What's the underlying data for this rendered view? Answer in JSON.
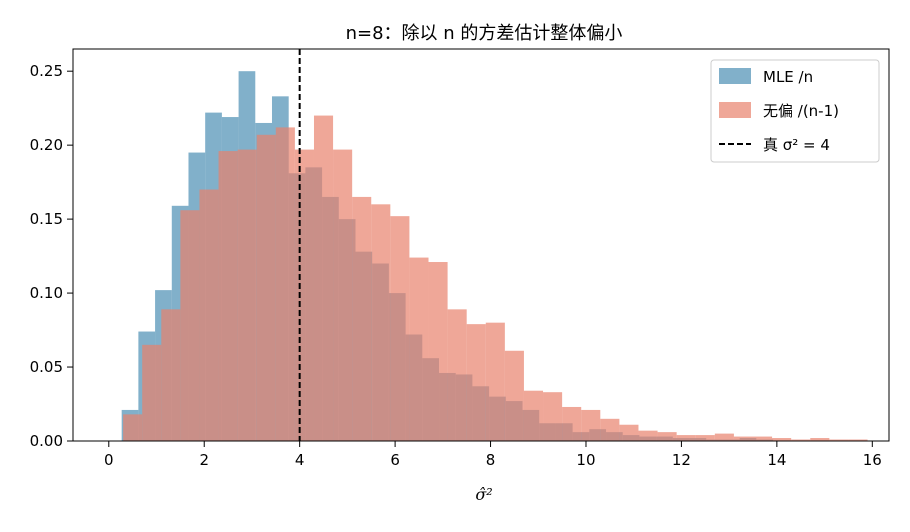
{
  "chart_data": {
    "type": "histogram",
    "title": "n=8：除以 n 的方差估计整体偏小",
    "xlabel": "σ̂²",
    "ylabel": "",
    "xlim": [
      -0.75,
      16.35
    ],
    "ylim": [
      0,
      0.265
    ],
    "xticks": [
      0,
      2,
      4,
      6,
      8,
      10,
      12,
      14,
      16
    ],
    "yticks": [
      0.0,
      0.05,
      0.1,
      0.15,
      0.2,
      0.25
    ],
    "ytick_labels": [
      "0.00",
      "0.05",
      "0.10",
      "0.15",
      "0.20",
      "0.25"
    ],
    "grid": false,
    "legend_position": "top-right",
    "series": [
      {
        "name": "MLE /n",
        "color": "#4c8fb4",
        "alpha": 0.7,
        "bin_width": 0.35,
        "bin_edges_start": 0.27,
        "values": [
          0.021,
          0.074,
          0.102,
          0.159,
          0.195,
          0.222,
          0.219,
          0.25,
          0.215,
          0.233,
          0.181,
          0.185,
          0.165,
          0.15,
          0.128,
          0.12,
          0.1,
          0.072,
          0.056,
          0.046,
          0.045,
          0.037,
          0.03,
          0.027,
          0.021,
          0.012,
          0.012,
          0.006,
          0.008,
          0.006,
          0.004,
          0.003,
          0.003,
          0.002,
          0.002,
          0.001,
          0.001,
          0.002,
          0.001
        ]
      },
      {
        "name": "无偏 /(n-1)",
        "color": "#e8826c",
        "alpha": 0.7,
        "bin_width": 0.4,
        "bin_edges_start": 0.3,
        "values": [
          0.018,
          0.065,
          0.089,
          0.156,
          0.17,
          0.196,
          0.197,
          0.207,
          0.212,
          0.197,
          0.22,
          0.197,
          0.165,
          0.16,
          0.152,
          0.124,
          0.121,
          0.089,
          0.079,
          0.08,
          0.061,
          0.034,
          0.033,
          0.023,
          0.021,
          0.015,
          0.011,
          0.007,
          0.006,
          0.004,
          0.004,
          0.005,
          0.003,
          0.003,
          0.002,
          0.001,
          0.002,
          0.001,
          0.001
        ]
      },
      {
        "name": "真 σ² = 4",
        "style": "dashed-vertical-line",
        "color": "#000000",
        "x": 4
      }
    ]
  }
}
